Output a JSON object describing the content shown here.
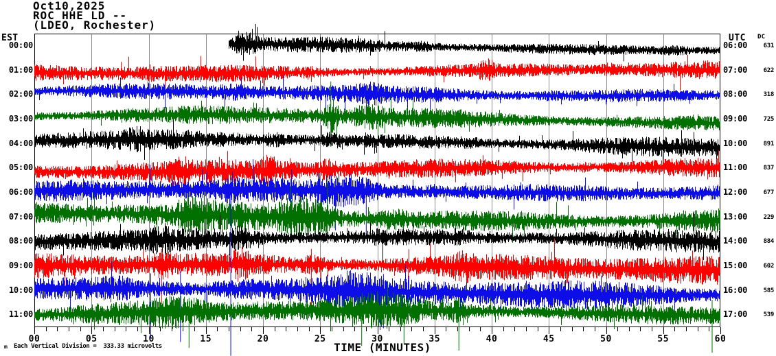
{
  "header": {
    "date": "Oct10,2025",
    "station_line": "ROC HHE LD --",
    "network_line": "(LDEO, Rochester)"
  },
  "chart_data": {
    "type": "line",
    "subtype": "helicorder-seismogram",
    "title": "ROC HHE LD -- (LDEO, Rochester) Oct10,2025",
    "x_axis": {
      "title": "TIME (MINUTES)",
      "min": 0,
      "max": 60,
      "major_tick_every_min": 5,
      "minor_tick_every_min": 1,
      "tick_labels": [
        "00",
        "05",
        "10",
        "15",
        "20",
        "25",
        "30",
        "35",
        "40",
        "45",
        "50",
        "55",
        "60"
      ]
    },
    "left_axis": {
      "title": "EST"
    },
    "right_axis": {
      "title": "UTC"
    },
    "dc_column_title": "DC",
    "grid": {
      "vertical_line_every_min": 5,
      "color": "#8C8C8C"
    },
    "footer_note": "Each Vertical Division =  333.33 microvolts",
    "vertical_division_microvolts": 333.33,
    "watermark": "m",
    "trace_colors_cycle": [
      "#000000",
      "#FF0000",
      "#0D0DE8",
      "#007000"
    ],
    "waveform": "continuous background seismic noise, one 60-minute row per hour",
    "rows": [
      {
        "est": "00:00",
        "utc": "06:00",
        "dc": "631",
        "color": "#000000",
        "amp": 10,
        "start_min": 17.0,
        "bursts": [
          [
            17.0,
            19.8,
            1.9
          ],
          [
            33,
            35,
            1.3
          ],
          [
            54.5,
            57.5,
            1.45
          ]
        ],
        "spikes": []
      },
      {
        "est": "01:00",
        "utc": "07:00",
        "dc": "622",
        "color": "#FF0000",
        "amp": 12,
        "bursts": [
          [
            9.3,
            10.7,
            1.35
          ],
          [
            23.3,
            24.7,
            1.3
          ],
          [
            38.6,
            40.4,
            1.75
          ],
          [
            49.5,
            51,
            1.3
          ]
        ],
        "spikes": []
      },
      {
        "est": "02:00",
        "utc": "08:00",
        "dc": "318",
        "color": "#0D0DE8",
        "amp": 12,
        "bursts": [
          [
            16,
            19,
            1.35
          ],
          [
            28,
            30.5,
            1.3
          ],
          [
            44,
            46,
            1.2
          ]
        ],
        "spikes": []
      },
      {
        "est": "03:00",
        "utc": "09:00",
        "dc": "725",
        "color": "#007000",
        "amp": 13,
        "bursts": [
          [
            7,
            9,
            1.3
          ],
          [
            25.3,
            26.7,
            2.4
          ],
          [
            27.5,
            31,
            1.5
          ]
        ],
        "spikes": [
          {
            "m": 25.9,
            "u": 55,
            "d": 40
          }
        ]
      },
      {
        "est": "04:00",
        "utc": "10:00",
        "dc": "891",
        "color": "#000000",
        "amp": 13,
        "bursts": [
          [
            8,
            9.5,
            1.3
          ],
          [
            20,
            22,
            1.5
          ],
          [
            25,
            27,
            1.5
          ],
          [
            37,
            39,
            1.3
          ]
        ],
        "spikes": []
      },
      {
        "est": "05:00",
        "utc": "11:00",
        "dc": "837",
        "color": "#FF0000",
        "amp": 15,
        "bursts": [
          [
            12,
            13.5,
            1.5
          ],
          [
            19.5,
            21.5,
            1.6
          ],
          [
            24.8,
            26.5,
            1.5
          ],
          [
            47,
            49,
            1.25
          ]
        ],
        "spikes": []
      },
      {
        "est": "06:00",
        "utc": "12:00",
        "dc": "677",
        "color": "#0D0DE8",
        "amp": 16,
        "bursts": [
          [
            16.5,
            18,
            1.4
          ],
          [
            24.5,
            30.5,
            1.7
          ],
          [
            34,
            36,
            1.3
          ]
        ],
        "spikes": [
          {
            "m": 26.3,
            "u": 20,
            "d": 55
          },
          {
            "m": 29.0,
            "u": 22,
            "d": 60
          }
        ]
      },
      {
        "est": "07:00",
        "utc": "13:00",
        "dc": "229",
        "color": "#007000",
        "amp": 18,
        "bursts": [
          [
            12,
            16,
            1.6
          ],
          [
            21,
            26.5,
            1.8
          ],
          [
            30,
            33,
            1.4
          ]
        ],
        "spikes": [
          {
            "m": 22.4,
            "u": 45,
            "d": 28
          },
          {
            "m": 25.6,
            "u": 50,
            "d": 30
          }
        ]
      },
      {
        "est": "08:00",
        "utc": "14:00",
        "dc": "884",
        "color": "#000000",
        "amp": 15,
        "bursts": [
          [
            10,
            12,
            1.5
          ],
          [
            17,
            19,
            1.6
          ],
          [
            29.5,
            31,
            1.4
          ],
          [
            36.5,
            38,
            1.45
          ]
        ],
        "spikes": []
      },
      {
        "est": "09:00",
        "utc": "15:00",
        "dc": "602",
        "color": "#FF0000",
        "amp": 19,
        "bursts": [
          [
            10,
            12.5,
            1.5
          ],
          [
            17,
            19,
            1.6
          ],
          [
            23,
            26,
            1.5
          ],
          [
            36.5,
            38.5,
            1.5
          ]
        ],
        "spikes": [
          {
            "m": 11.1,
            "u": 25,
            "d": 55
          },
          {
            "m": 24.2,
            "u": 25,
            "d": 60
          }
        ]
      },
      {
        "est": "10:00",
        "utc": "16:00",
        "dc": "585",
        "color": "#0D0DE8",
        "amp": 20,
        "bursts": [
          [
            5,
            9,
            1.3
          ],
          [
            15,
            20,
            1.4
          ],
          [
            25,
            31,
            1.4
          ]
        ],
        "spikes": [
          {
            "m": 10.15,
            "u": 25,
            "d": 70
          },
          {
            "m": 12.75,
            "u": 28,
            "d": 75
          },
          {
            "m": 17.15,
            "u": 165,
            "d": 95
          },
          {
            "m": 30.5,
            "u": 24,
            "d": 55
          }
        ]
      },
      {
        "est": "11:00",
        "utc": "17:00",
        "dc": "539",
        "color": "#007000",
        "amp": 17,
        "bursts": [
          [
            10,
            15,
            1.4
          ],
          [
            26,
            34,
            1.5
          ],
          [
            36,
            38,
            1.5
          ]
        ],
        "spikes": [
          {
            "m": 13.5,
            "u": 25,
            "d": 48
          },
          {
            "m": 28.6,
            "u": 24,
            "d": 45
          },
          {
            "m": 32.3,
            "u": 22,
            "d": 42
          },
          {
            "m": 37.1,
            "u": 25,
            "d": 52
          },
          {
            "m": 59.25,
            "u": 22,
            "d": 55
          }
        ]
      }
    ]
  }
}
